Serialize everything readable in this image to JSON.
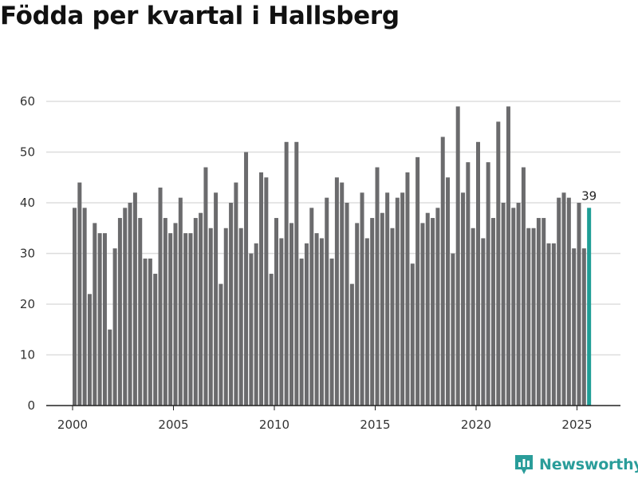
{
  "chart_data": {
    "type": "bar",
    "title": "Födda per kvartal i Hallsberg",
    "xlabel": "",
    "ylabel": "",
    "ylim": [
      0,
      60
    ],
    "yticks": [
      0,
      10,
      20,
      30,
      40,
      50,
      60
    ],
    "xticks": [
      2000,
      2005,
      2010,
      2015,
      2020,
      2025
    ],
    "start_year": 2000,
    "quarters_per_year": 4,
    "values": [
      39,
      44,
      39,
      22,
      36,
      34,
      34,
      15,
      31,
      37,
      39,
      40,
      42,
      37,
      29,
      29,
      26,
      43,
      37,
      34,
      36,
      41,
      34,
      34,
      37,
      38,
      47,
      35,
      42,
      24,
      35,
      40,
      44,
      35,
      50,
      30,
      32,
      46,
      45,
      26,
      37,
      33,
      52,
      36,
      52,
      29,
      32,
      39,
      34,
      33,
      41,
      29,
      45,
      44,
      40,
      24,
      36,
      42,
      33,
      37,
      47,
      38,
      42,
      35,
      41,
      42,
      46,
      28,
      49,
      36,
      38,
      37,
      39,
      53,
      45,
      30,
      59,
      42,
      48,
      35,
      52,
      33,
      48,
      37,
      56,
      40,
      59,
      39,
      40,
      47,
      35,
      35,
      37,
      37,
      32,
      32,
      41,
      42,
      41,
      31,
      40,
      31,
      39
    ],
    "highlight_index": 102,
    "highlight_label": "39",
    "colors": {
      "bar": "#6b6b6d",
      "highlight": "#1f9e96",
      "grid": "#dddddd",
      "axis": "#222222"
    }
  },
  "brand": {
    "name": "Newsworthy",
    "icon": "newsworthy-logo-icon"
  }
}
